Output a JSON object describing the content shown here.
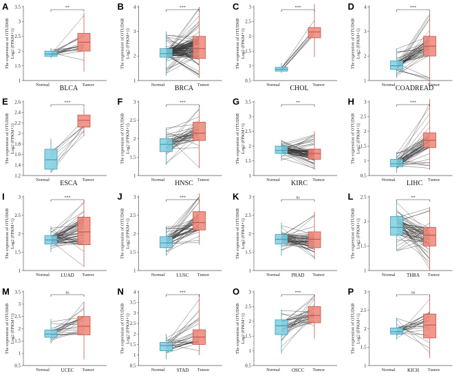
{
  "figure": {
    "y_label_line1": "The expression of OTUD6B",
    "y_label_line2": "Log2 (FPKM+1)",
    "colors": {
      "normal": "#7fcfe2",
      "normal_stroke": "#3b9bb6",
      "tumor": "#ee8577",
      "tumor_stroke": "#c0564a",
      "pair_line": "#333333"
    }
  },
  "chart_data": [
    {
      "type": "box",
      "letter": "A",
      "cancer": "BLCA",
      "categories": [
        "Normal",
        "Tumor"
      ],
      "significance": "**",
      "ylim": [
        1.0,
        3.5
      ],
      "yticks": [
        1.0,
        1.5,
        2.0,
        2.5,
        3.0,
        3.5
      ],
      "cancer_in_axis": false,
      "pairs": 19,
      "normal": {
        "min": 1.75,
        "q1": 1.82,
        "median": 1.9,
        "q3": 2.0,
        "max": 2.1
      },
      "tumor": {
        "min": 1.3,
        "q1": 2.0,
        "median": 2.3,
        "q3": 2.6,
        "max": 3.3
      }
    },
    {
      "type": "box",
      "letter": "B",
      "cancer": "BRCA",
      "categories": [
        "Normal",
        "Tumor"
      ],
      "significance": "***",
      "ylim": [
        1,
        4
      ],
      "yticks": [
        1,
        2,
        3,
        4
      ],
      "cancer_in_axis": false,
      "pairs": 110,
      "normal": {
        "min": 1.2,
        "q1": 1.95,
        "median": 2.1,
        "q3": 2.3,
        "max": 3.0
      },
      "tumor": {
        "min": 1.1,
        "q1": 1.9,
        "median": 2.3,
        "q3": 2.8,
        "max": 4.0
      }
    },
    {
      "type": "box",
      "letter": "C",
      "cancer": "CHOL",
      "categories": [
        "Normal",
        "Tumor"
      ],
      "significance": "***",
      "ylim": [
        0.5,
        3.0
      ],
      "yticks": [
        0.5,
        1.0,
        1.5,
        2.0,
        2.5,
        3.0
      ],
      "cancer_in_axis": false,
      "pairs": 9,
      "normal": {
        "min": 0.75,
        "q1": 0.82,
        "median": 0.88,
        "q3": 0.95,
        "max": 1.1
      },
      "tumor": {
        "min": 1.3,
        "q1": 1.95,
        "median": 2.15,
        "q3": 2.3,
        "max": 3.1
      }
    },
    {
      "type": "box",
      "letter": "D",
      "cancer": "COADREAD",
      "categories": [
        "Normal",
        "Tumor"
      ],
      "significance": "***",
      "ylim": [
        1,
        4
      ],
      "yticks": [
        1,
        2,
        3,
        4
      ],
      "cancer_in_axis": false,
      "pairs": 50,
      "normal": {
        "min": 1.1,
        "q1": 1.45,
        "median": 1.6,
        "q3": 1.8,
        "max": 2.3
      },
      "tumor": {
        "min": 0.7,
        "q1": 2.0,
        "median": 2.4,
        "q3": 2.8,
        "max": 3.8
      }
    },
    {
      "type": "box",
      "letter": "E",
      "cancer": "ESCA",
      "categories": [
        "Normal",
        "Tumor"
      ],
      "significance": "***",
      "ylim": [
        1.2,
        2.6
      ],
      "yticks": [
        1.2,
        1.4,
        1.6,
        1.8,
        2.0,
        2.2,
        2.4,
        2.6
      ],
      "cancer_in_axis": false,
      "pairs": 9,
      "normal": {
        "min": 1.25,
        "q1": 1.32,
        "median": 1.5,
        "q3": 1.7,
        "max": 1.9
      },
      "tumor": {
        "min": 1.95,
        "q1": 2.12,
        "median": 2.25,
        "q3": 2.35,
        "max": 2.5
      }
    },
    {
      "type": "box",
      "letter": "F",
      "cancer": "HNSC",
      "categories": [
        "Normal",
        "Tumor"
      ],
      "significance": "***",
      "ylim": [
        1.0,
        3.0
      ],
      "yticks": [
        1.0,
        1.5,
        2.0,
        2.5,
        3.0
      ],
      "cancer_in_axis": false,
      "pairs": 40,
      "normal": {
        "min": 1.3,
        "q1": 1.65,
        "median": 1.85,
        "q3": 2.0,
        "max": 2.3
      },
      "tumor": {
        "min": 1.2,
        "q1": 1.95,
        "median": 2.15,
        "q3": 2.45,
        "max": 2.9
      }
    },
    {
      "type": "box",
      "letter": "G",
      "cancer": "KIRC",
      "categories": [
        "Normal",
        "Tumor"
      ],
      "significance": "**",
      "ylim": [
        1.0,
        3.5
      ],
      "yticks": [
        1.0,
        1.5,
        2.0,
        2.5,
        3.0,
        3.5
      ],
      "cancer_in_axis": false,
      "pairs": 70,
      "normal": {
        "min": 1.5,
        "q1": 1.75,
        "median": 1.85,
        "q3": 2.0,
        "max": 2.2
      },
      "tumor": {
        "min": 1.2,
        "q1": 1.55,
        "median": 1.75,
        "q3": 1.9,
        "max": 2.5
      }
    },
    {
      "type": "box",
      "letter": "H",
      "cancer": "LIHC",
      "categories": [
        "Normal",
        "Tumor"
      ],
      "significance": "***",
      "ylim": [
        0.5,
        3.0
      ],
      "yticks": [
        0.5,
        1.0,
        1.5,
        2.0,
        2.5,
        3.0
      ],
      "cancer_in_axis": false,
      "pairs": 50,
      "normal": {
        "min": 0.6,
        "q1": 0.8,
        "median": 0.9,
        "q3": 1.05,
        "max": 1.3
      },
      "tumor": {
        "min": 0.7,
        "q1": 1.45,
        "median": 1.7,
        "q3": 1.95,
        "max": 3.1
      }
    },
    {
      "type": "box",
      "letter": "I",
      "cancer": "LUAD",
      "categories": [
        "Normal",
        "Tumor"
      ],
      "significance": "***",
      "ylim": [
        1.0,
        3.0
      ],
      "yticks": [
        1.0,
        1.5,
        2.0,
        2.5,
        3.0
      ],
      "cancer_in_axis": true,
      "pairs": 58,
      "normal": {
        "min": 1.5,
        "q1": 1.72,
        "median": 1.83,
        "q3": 1.95,
        "max": 2.2
      },
      "tumor": {
        "min": 1.1,
        "q1": 1.7,
        "median": 2.05,
        "q3": 2.45,
        "max": 2.9
      }
    },
    {
      "type": "box",
      "letter": "J",
      "cancer": "LUSC",
      "categories": [
        "Normal",
        "Tumor"
      ],
      "significance": "***",
      "ylim": [
        1.0,
        3.0
      ],
      "yticks": [
        1.0,
        1.5,
        2.0,
        2.5,
        3.0
      ],
      "cancer_in_axis": true,
      "pairs": 49,
      "normal": {
        "min": 1.4,
        "q1": 1.62,
        "median": 1.75,
        "q3": 1.92,
        "max": 2.2
      },
      "tumor": {
        "min": 1.7,
        "q1": 2.1,
        "median": 2.3,
        "q3": 2.6,
        "max": 3.1
      }
    },
    {
      "type": "box",
      "letter": "K",
      "cancer": "PRAD",
      "categories": [
        "Normal",
        "Tumor"
      ],
      "significance": "ns",
      "ylim": [
        1.0,
        3.0
      ],
      "yticks": [
        1.0,
        1.5,
        2.0,
        2.5,
        3.0
      ],
      "cancer_in_axis": true,
      "pairs": 52,
      "normal": {
        "min": 1.4,
        "q1": 1.72,
        "median": 1.85,
        "q3": 1.98,
        "max": 2.3
      },
      "tumor": {
        "min": 1.3,
        "q1": 1.62,
        "median": 1.85,
        "q3": 2.05,
        "max": 2.6
      }
    },
    {
      "type": "box",
      "letter": "L",
      "cancer": "THRA",
      "categories": [
        "Normal",
        "Tumor"
      ],
      "significance": "**",
      "ylim": [
        1.0,
        2.5
      ],
      "yticks": [
        1.0,
        1.5,
        2.0,
        2.5
      ],
      "cancer_in_axis": true,
      "pairs": 59,
      "normal": {
        "min": 1.4,
        "q1": 1.72,
        "median": 1.88,
        "q3": 2.1,
        "max": 2.4
      },
      "tumor": {
        "min": 1.0,
        "q1": 1.5,
        "median": 1.72,
        "q3": 1.88,
        "max": 2.3
      }
    },
    {
      "type": "box",
      "letter": "M",
      "cancer": "UCEC",
      "categories": [
        "Normal",
        "Tumor"
      ],
      "significance": "ns",
      "ylim": [
        0.5,
        3.5
      ],
      "yticks": [
        0.5,
        1.0,
        1.5,
        2.0,
        2.5,
        3.0,
        3.5
      ],
      "cancer_in_axis": true,
      "pairs": 23,
      "normal": {
        "min": 1.4,
        "q1": 1.65,
        "median": 1.78,
        "q3": 1.95,
        "max": 2.4
      },
      "tumor": {
        "min": 0.75,
        "q1": 1.75,
        "median": 2.1,
        "q3": 2.5,
        "max": 3.1
      }
    },
    {
      "type": "box",
      "letter": "N",
      "cancer": "STAD",
      "categories": [
        "Normal",
        "Tumor"
      ],
      "significance": "***",
      "ylim": [
        0.5,
        4.0
      ],
      "yticks": [
        0.5,
        1.0,
        1.5,
        2.0,
        2.5,
        3.0,
        3.5,
        4.0
      ],
      "cancer_in_axis": true,
      "pairs": 27,
      "normal": {
        "min": 0.8,
        "q1": 1.2,
        "median": 1.45,
        "q3": 1.6,
        "max": 2.0
      },
      "tumor": {
        "min": 1.0,
        "q1": 1.5,
        "median": 1.85,
        "q3": 2.2,
        "max": 3.9
      }
    },
    {
      "type": "box",
      "letter": "O",
      "cancer": "OSCC",
      "categories": [
        "Normal",
        "Tumor"
      ],
      "significance": "***",
      "ylim": [
        0.5,
        3.0
      ],
      "yticks": [
        0.5,
        1.0,
        1.5,
        2.0,
        2.5,
        3.0
      ],
      "cancer_in_axis": true,
      "pairs": 33,
      "normal": {
        "min": 0.9,
        "q1": 1.55,
        "median": 1.85,
        "q3": 2.05,
        "max": 2.4
      },
      "tumor": {
        "min": 1.4,
        "q1": 1.95,
        "median": 2.2,
        "q3": 2.5,
        "max": 2.9
      }
    },
    {
      "type": "box",
      "letter": "P",
      "cancer": "KICH",
      "categories": [
        "Normal",
        "Tumor"
      ],
      "significance": "ns",
      "ylim": [
        1.0,
        3.0
      ],
      "yticks": [
        1.0,
        1.5,
        2.0,
        2.5,
        3.0
      ],
      "cancer_in_axis": true,
      "pairs": 24,
      "normal": {
        "min": 1.7,
        "q1": 1.85,
        "median": 1.92,
        "q3": 2.02,
        "max": 2.3
      },
      "tumor": {
        "min": 1.2,
        "q1": 1.75,
        "median": 2.1,
        "q3": 2.4,
        "max": 2.9
      }
    }
  ]
}
